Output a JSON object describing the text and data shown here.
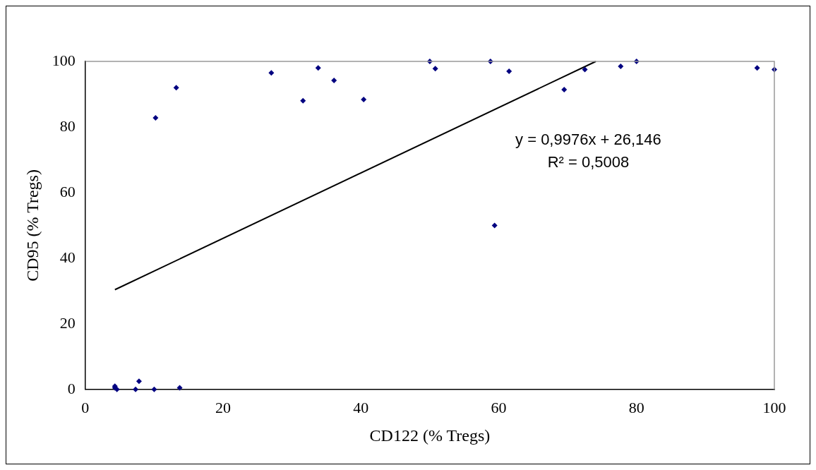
{
  "chart_data": {
    "type": "scatter",
    "xlabel": "CD122 (% Tregs)",
    "ylabel": "CD95 (% Tregs)",
    "xlim": [
      0,
      100
    ],
    "xticks": [
      0,
      20,
      40,
      60,
      80,
      100
    ],
    "ylim": [
      0,
      100
    ],
    "yticks": [
      0,
      20,
      40,
      60,
      80,
      100
    ],
    "grid": false,
    "legend": false,
    "marker": "diamond",
    "annotations": [
      "y = 0,9976x + 26,146",
      "R² = 0,5008"
    ],
    "series": [
      {
        "color": "#000080",
        "x": [
          4.3,
          4.3,
          4.6,
          7.3,
          7.8,
          10,
          13.7,
          10.2,
          13.2,
          27,
          31.6,
          33.8,
          36.1,
          40.4,
          50,
          50.8,
          58.8,
          59.4,
          61.5,
          69.5,
          72.5,
          77.7,
          80,
          97.5,
          100
        ],
        "values": [
          1,
          0.5,
          0,
          0,
          2.5,
          0,
          0.5,
          82.8,
          92,
          96.5,
          88,
          98,
          94.2,
          88.4,
          100,
          97.8,
          100,
          50,
          97,
          91.4,
          97.5,
          98.5,
          100,
          98,
          97.5
        ]
      },
      {
        "type": "line",
        "color": "#000000",
        "marker": "none",
        "x": [
          4.3,
          74.1
        ],
        "values": [
          30.4,
          100
        ]
      }
    ]
  }
}
